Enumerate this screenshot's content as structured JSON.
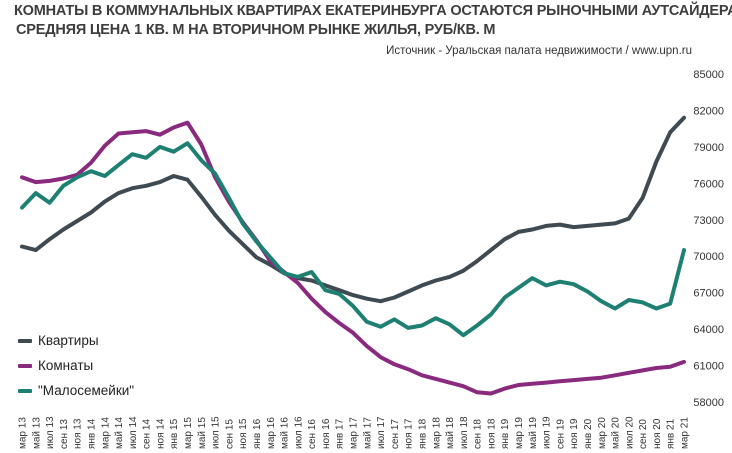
{
  "header": {
    "title": "КОМНАТЫ В КОММУНАЛЬНЫХ КВАРТИРАХ ЕКАТЕРИНБУРГА ОСТАЮТСЯ РЫНОЧНЫМИ АУТСАЙДЕРАМИ",
    "subtitle": "СРЕДНЯЯ ЦЕНА 1 КВ. М НА ВТОРИЧНОМ РЫНКЕ ЖИЛЬЯ, РУБ/КВ. М",
    "source": "Источник - Уральская палата недвижимости  / www.upn.ru"
  },
  "chart_data": {
    "type": "line",
    "title": "КОМНАТЫ В КОММУНАЛЬНЫХ КВАРТИРАХ ЕКАТЕРИНБУРГА ОСТАЮТСЯ РЫНОЧНЫМИ АУТСАЙДЕРАМИ",
    "subtitle": "СРЕДНЯЯ ЦЕНА 1 КВ. М НА ВТОРИЧНОМ РЫНКЕ ЖИЛЬЯ, РУБ/КВ. М",
    "ylim": [
      58000,
      85000
    ],
    "y_ticks": [
      58000,
      61000,
      64000,
      67000,
      70000,
      73000,
      76000,
      79000,
      82000,
      85000
    ],
    "y_axis_side": "right",
    "grid": false,
    "legend_position": "bottom-left",
    "x_tick_labels": [
      "мар 13",
      "май 13",
      "июл 13",
      "сен 13",
      "ноя 13",
      "янв 14",
      "мар 14",
      "май 14",
      "июл 14",
      "сен 14",
      "ноя 14",
      "янв 15",
      "мар 15",
      "май 15",
      "июл 15",
      "сен 15",
      "ноя 15",
      "янв 16",
      "мар 16",
      "май 16",
      "июл 16",
      "сен 16",
      "ноя 16",
      "янв 17",
      "мар 17",
      "май 17",
      "июл 17",
      "сен 17",
      "ноя 17",
      "янв 18",
      "мар 18",
      "май 18",
      "июл 18",
      "сен 18",
      "ноя 18",
      "янв 19",
      "мар 19",
      "май 19",
      "июл 19",
      "сен 19",
      "ноя 19",
      "янв 20",
      "мар 20",
      "май 20",
      "июл 20",
      "сен 20",
      "ноя 20",
      "янв 21",
      "мар 21"
    ],
    "series": [
      {
        "name": "Квартиры",
        "color": "#3f4a52",
        "values": [
          [
            "мар 13",
            70800
          ],
          [
            "май 13",
            70500
          ],
          [
            "июл 13",
            71400
          ],
          [
            "сен 13",
            72200
          ],
          [
            "ноя 13",
            72900
          ],
          [
            "янв 14",
            73600
          ],
          [
            "мар 14",
            74500
          ],
          [
            "май 14",
            75200
          ],
          [
            "июл 14",
            75600
          ],
          [
            "сен 14",
            75800
          ],
          [
            "ноя 14",
            76100
          ],
          [
            "янв 15",
            76600
          ],
          [
            "мар 15",
            76300
          ],
          [
            "май 15",
            74900
          ],
          [
            "июл 15",
            73400
          ],
          [
            "сен 15",
            72100
          ],
          [
            "ноя 15",
            71000
          ],
          [
            "янв 16",
            69900
          ],
          [
            "мар 16",
            69300
          ],
          [
            "май 16",
            68600
          ],
          [
            "июл 16",
            68200
          ],
          [
            "сен 16",
            68000
          ],
          [
            "ноя 16",
            67600
          ],
          [
            "янв 17",
            67200
          ],
          [
            "мар 17",
            66800
          ],
          [
            "май 17",
            66500
          ],
          [
            "июл 17",
            66300
          ],
          [
            "сен 17",
            66600
          ],
          [
            "ноя 17",
            67100
          ],
          [
            "янв 18",
            67600
          ],
          [
            "мар 18",
            68000
          ],
          [
            "май 18",
            68300
          ],
          [
            "июл 18",
            68800
          ],
          [
            "сен 18",
            69600
          ],
          [
            "ноя 18",
            70500
          ],
          [
            "янв 19",
            71400
          ],
          [
            "мар 19",
            72000
          ],
          [
            "май 19",
            72200
          ],
          [
            "июл 19",
            72500
          ],
          [
            "сен 19",
            72600
          ],
          [
            "ноя 19",
            72400
          ],
          [
            "янв 20",
            72500
          ],
          [
            "мар 20",
            72600
          ],
          [
            "май 20",
            72700
          ],
          [
            "июл 20",
            73100
          ],
          [
            "сен 20",
            74800
          ],
          [
            "ноя 20",
            77800
          ],
          [
            "янв 21",
            80200
          ],
          [
            "мар 21",
            81400
          ]
        ]
      },
      {
        "name": "Комнаты",
        "color": "#8a2a7e",
        "values": [
          [
            "мар 13",
            76500
          ],
          [
            "май 13",
            76100
          ],
          [
            "июл 13",
            76200
          ],
          [
            "сен 13",
            76400
          ],
          [
            "ноя 13",
            76700
          ],
          [
            "янв 14",
            77700
          ],
          [
            "мар 14",
            79100
          ],
          [
            "май 14",
            80100
          ],
          [
            "июл 14",
            80200
          ],
          [
            "сен 14",
            80300
          ],
          [
            "ноя 14",
            80000
          ],
          [
            "янв 15",
            80600
          ],
          [
            "мар 15",
            81000
          ],
          [
            "май 15",
            79200
          ],
          [
            "июл 15",
            76500
          ],
          [
            "сен 15",
            74500
          ],
          [
            "ноя 15",
            72800
          ],
          [
            "янв 16",
            71300
          ],
          [
            "мар 16",
            69600
          ],
          [
            "май 16",
            68700
          ],
          [
            "июл 16",
            67800
          ],
          [
            "сен 16",
            66500
          ],
          [
            "ноя 16",
            65400
          ],
          [
            "янв 17",
            64500
          ],
          [
            "мар 17",
            63700
          ],
          [
            "май 17",
            62600
          ],
          [
            "июл 17",
            61700
          ],
          [
            "сен 17",
            61100
          ],
          [
            "ноя 17",
            60700
          ],
          [
            "янв 18",
            60200
          ],
          [
            "мар 18",
            59900
          ],
          [
            "май 18",
            59600
          ],
          [
            "июл 18",
            59300
          ],
          [
            "сен 18",
            58800
          ],
          [
            "ноя 18",
            58700
          ],
          [
            "янв 19",
            59100
          ],
          [
            "мар 19",
            59400
          ],
          [
            "май 19",
            59500
          ],
          [
            "июл 19",
            59600
          ],
          [
            "сен 19",
            59700
          ],
          [
            "ноя 19",
            59800
          ],
          [
            "янв 20",
            59900
          ],
          [
            "мар 20",
            60000
          ],
          [
            "май 20",
            60200
          ],
          [
            "июл 20",
            60400
          ],
          [
            "сен 20",
            60600
          ],
          [
            "ноя 20",
            60800
          ],
          [
            "янв 21",
            60900
          ],
          [
            "мар 21",
            61300
          ]
        ]
      },
      {
        "name": "\"Малосемейки\"",
        "color": "#1e8072",
        "values": [
          [
            "мар 13",
            74000
          ],
          [
            "май 13",
            75200
          ],
          [
            "июл 13",
            74400
          ],
          [
            "сен 13",
            75800
          ],
          [
            "ноя 13",
            76500
          ],
          [
            "янв 14",
            77000
          ],
          [
            "мар 14",
            76600
          ],
          [
            "май 14",
            77500
          ],
          [
            "июл 14",
            78400
          ],
          [
            "сен 14",
            78100
          ],
          [
            "ноя 14",
            79000
          ],
          [
            "янв 15",
            78600
          ],
          [
            "мар 15",
            79300
          ],
          [
            "май 15",
            77900
          ],
          [
            "июл 15",
            76800
          ],
          [
            "сен 15",
            74800
          ],
          [
            "ноя 15",
            72700
          ],
          [
            "янв 16",
            71200
          ],
          [
            "мар 16",
            69900
          ],
          [
            "май 16",
            68600
          ],
          [
            "июл 16",
            68300
          ],
          [
            "сен 16",
            68700
          ],
          [
            "ноя 16",
            67200
          ],
          [
            "янв 17",
            66900
          ],
          [
            "мар 17",
            65900
          ],
          [
            "май 17",
            64600
          ],
          [
            "июл 17",
            64200
          ],
          [
            "сен 17",
            64800
          ],
          [
            "ноя 17",
            64100
          ],
          [
            "янв 18",
            64300
          ],
          [
            "мар 18",
            64900
          ],
          [
            "май 18",
            64400
          ],
          [
            "июл 18",
            63500
          ],
          [
            "сен 18",
            64300
          ],
          [
            "ноя 18",
            65200
          ],
          [
            "янв 19",
            66600
          ],
          [
            "мар 19",
            67400
          ],
          [
            "май 19",
            68200
          ],
          [
            "июл 19",
            67600
          ],
          [
            "сен 19",
            67900
          ],
          [
            "ноя 19",
            67700
          ],
          [
            "янв 20",
            67100
          ],
          [
            "мар 20",
            66300
          ],
          [
            "май 20",
            65700
          ],
          [
            "июл 20",
            66400
          ],
          [
            "сен 20",
            66200
          ],
          [
            "ноя 20",
            65700
          ],
          [
            "янв 21",
            66100
          ],
          [
            "мар 21",
            70500
          ]
        ]
      }
    ]
  }
}
